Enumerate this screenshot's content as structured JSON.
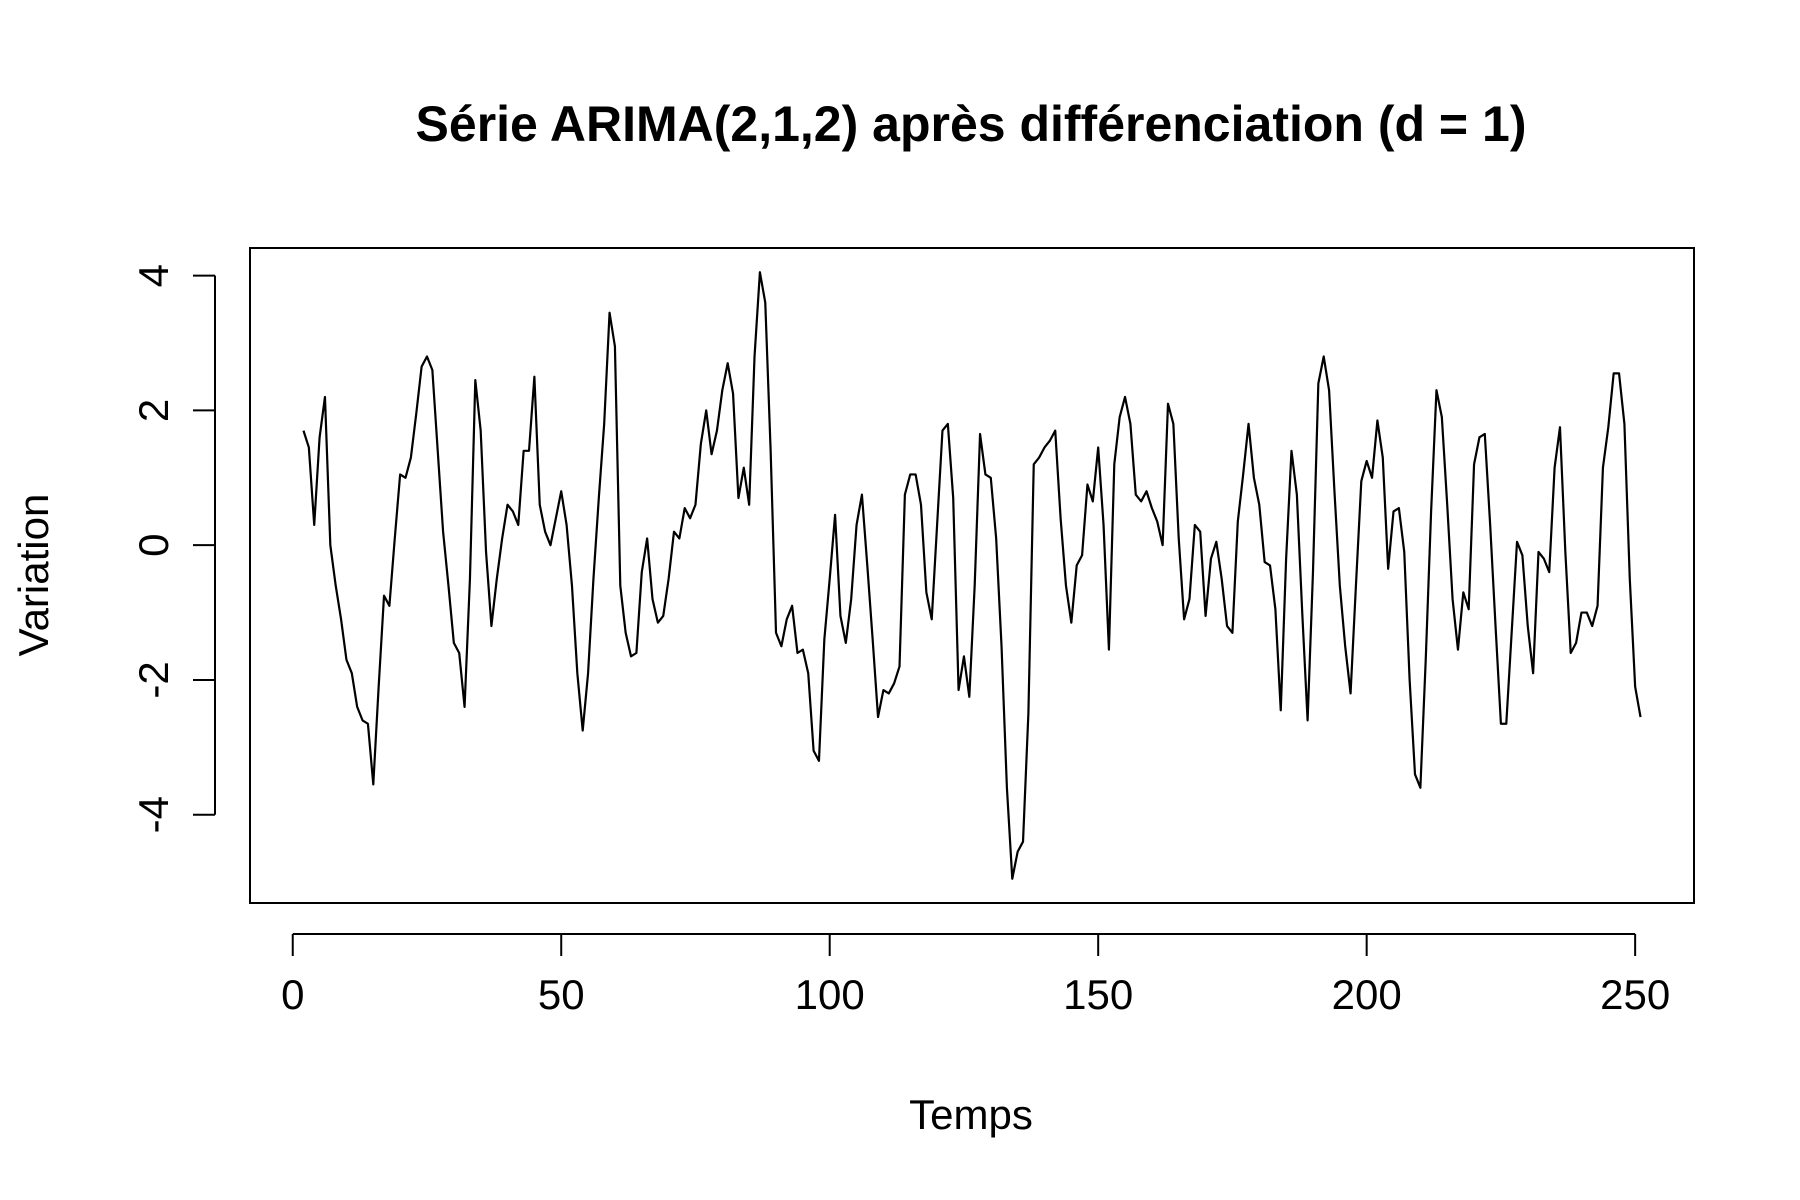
{
  "chart_data": {
    "type": "line",
    "title": "Série ARIMA(2,1,2) après différenciation (d = 1)",
    "x_label": "Temps",
    "y_label": "Variation",
    "x": [
      2,
      3,
      4,
      5,
      6,
      7,
      8,
      9,
      10,
      11,
      12,
      13,
      14,
      15,
      16,
      17,
      18,
      19,
      20,
      21,
      22,
      23,
      24,
      25,
      26,
      27,
      28,
      29,
      30,
      31,
      32,
      33,
      34,
      35,
      36,
      37,
      38,
      39,
      40,
      41,
      42,
      43,
      44,
      45,
      46,
      47,
      48,
      49,
      50,
      51,
      52,
      53,
      54,
      55,
      56,
      57,
      58,
      59,
      60,
      61,
      62,
      63,
      64,
      65,
      66,
      67,
      68,
      69,
      70,
      71,
      72,
      73,
      74,
      75,
      76,
      77,
      78,
      79,
      80,
      81,
      82,
      83,
      84,
      85,
      86,
      87,
      88,
      89,
      90,
      91,
      92,
      93,
      94,
      95,
      96,
      97,
      98,
      99,
      100,
      101,
      102,
      103,
      104,
      105,
      106,
      107,
      108,
      109,
      110,
      111,
      112,
      113,
      114,
      115,
      116,
      117,
      118,
      119,
      120,
      121,
      122,
      123,
      124,
      125,
      126,
      127,
      128,
      129,
      130,
      131,
      132,
      133,
      134,
      135,
      136,
      137,
      138,
      139,
      140,
      141,
      142,
      143,
      144,
      145,
      146,
      147,
      148,
      149,
      150,
      151,
      152,
      153,
      154,
      155,
      156,
      157,
      158,
      159,
      160,
      161,
      162,
      163,
      164,
      165,
      166,
      167,
      168,
      169,
      170,
      171,
      172,
      173,
      174,
      175,
      176,
      177,
      178,
      179,
      180,
      181,
      182,
      183,
      184,
      185,
      186,
      187,
      188,
      189,
      190,
      191,
      192,
      193,
      194,
      195,
      196,
      197,
      198,
      199,
      200,
      201,
      202,
      203,
      204,
      205,
      206,
      207,
      208,
      209,
      210,
      211,
      212,
      213,
      214,
      215,
      216,
      217,
      218,
      219,
      220,
      221,
      222,
      223,
      224,
      225,
      226,
      227,
      228,
      229,
      230,
      231,
      232,
      233,
      234,
      235,
      236,
      237,
      238,
      239,
      240,
      241,
      242,
      243,
      244,
      245,
      246,
      247,
      248,
      249,
      250,
      251
    ],
    "series": [
      {
        "color": "#000000",
        "values": [
          1.7,
          1.45,
          0.3,
          1.6,
          2.2,
          0.0,
          -0.6,
          -1.1,
          -1.7,
          -1.9,
          -2.4,
          -2.6,
          -2.65,
          -3.55,
          -2.1,
          -0.75,
          -0.9,
          0.1,
          1.05,
          1.0,
          1.3,
          1.95,
          2.65,
          2.8,
          2.6,
          1.4,
          0.2,
          -0.6,
          -1.45,
          -1.6,
          -2.4,
          -0.5,
          2.45,
          1.7,
          -0.1,
          -1.2,
          -0.5,
          0.1,
          0.6,
          0.5,
          0.3,
          1.4,
          1.4,
          2.5,
          0.6,
          0.2,
          0.0,
          0.4,
          0.8,
          0.3,
          -0.6,
          -1.9,
          -2.75,
          -1.9,
          -0.5,
          0.7,
          1.8,
          3.45,
          2.95,
          -0.6,
          -1.3,
          -1.65,
          -1.6,
          -0.4,
          0.1,
          -0.8,
          -1.15,
          -1.05,
          -0.5,
          0.2,
          0.1,
          0.55,
          0.4,
          0.6,
          1.5,
          2.0,
          1.35,
          1.7,
          2.3,
          2.7,
          2.25,
          0.7,
          1.15,
          0.6,
          2.8,
          4.05,
          3.6,
          1.4,
          -1.3,
          -1.5,
          -1.1,
          -0.9,
          -1.6,
          -1.55,
          -1.9,
          -3.05,
          -3.2,
          -1.4,
          -0.5,
          0.45,
          -1.05,
          -1.45,
          -0.8,
          0.3,
          0.75,
          -0.3,
          -1.4,
          -2.55,
          -2.15,
          -2.2,
          -2.05,
          -1.8,
          0.75,
          1.05,
          1.05,
          0.6,
          -0.7,
          -1.1,
          0.3,
          1.7,
          1.8,
          0.7,
          -2.15,
          -1.65,
          -2.25,
          -0.6,
          1.65,
          1.05,
          1.0,
          0.1,
          -1.5,
          -3.6,
          -4.95,
          -4.55,
          -4.4,
          -2.5,
          1.2,
          1.3,
          1.45,
          1.55,
          1.7,
          0.4,
          -0.6,
          -1.15,
          -0.3,
          -0.15,
          0.9,
          0.65,
          1.45,
          0.3,
          -1.55,
          1.2,
          1.9,
          2.2,
          1.8,
          0.75,
          0.65,
          0.8,
          0.55,
          0.35,
          0.0,
          2.1,
          1.8,
          0.1,
          -1.1,
          -0.8,
          0.3,
          0.2,
          -1.05,
          -0.2,
          0.05,
          -0.5,
          -1.2,
          -1.3,
          0.35,
          1.05,
          1.8,
          1.0,
          0.6,
          -0.25,
          -0.3,
          -0.95,
          -2.45,
          -0.2,
          1.4,
          0.75,
          -1.0,
          -2.6,
          -0.4,
          2.4,
          2.8,
          2.3,
          0.8,
          -0.6,
          -1.5,
          -2.2,
          -0.6,
          0.95,
          1.25,
          1.0,
          1.85,
          1.3,
          -0.35,
          0.5,
          0.55,
          -0.1,
          -2.0,
          -3.4,
          -3.6,
          -1.7,
          0.5,
          2.3,
          1.9,
          0.6,
          -0.8,
          -1.55,
          -0.7,
          -0.95,
          1.2,
          1.6,
          1.65,
          0.3,
          -1.2,
          -2.65,
          -2.65,
          -1.3,
          0.05,
          -0.15,
          -1.2,
          -1.9,
          -0.1,
          -0.2,
          -0.4,
          1.15,
          1.75,
          -0.1,
          -1.6,
          -1.45,
          -1.0,
          -1.0,
          -1.2,
          -0.9,
          1.15,
          1.75,
          2.55,
          2.55,
          1.8,
          -0.5,
          -2.1,
          -2.55
        ]
      }
    ],
    "xlim": [
      -7.96,
      260.96
    ],
    "ylim": [
      -5.31,
      4.41
    ],
    "xticks": [
      0,
      50,
      100,
      150,
      200,
      250
    ],
    "yticks": [
      -4,
      -2,
      0,
      2,
      4
    ]
  }
}
